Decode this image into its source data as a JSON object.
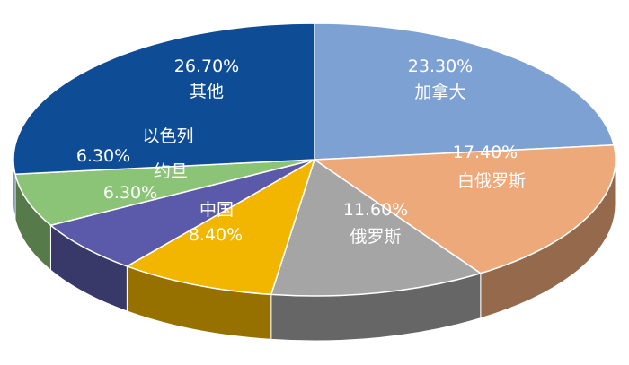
{
  "chart_data": {
    "type": "pie",
    "title": "",
    "slices": [
      {
        "label": "加拿大",
        "value": 23.3,
        "display": "23.30%",
        "color": "#7ea1d4"
      },
      {
        "label": "白俄罗斯",
        "value": 17.4,
        "display": "17.40%",
        "color": "#eea97a"
      },
      {
        "label": "俄罗斯",
        "value": 11.6,
        "display": "11.60%",
        "color": "#a5a5a5"
      },
      {
        "label": "中国",
        "value": 8.4,
        "display": "8.40%",
        "color": "#f2b600"
      },
      {
        "label": "约旦",
        "value": 6.3,
        "display": "6.30%",
        "color": "#5b5aaa"
      },
      {
        "label": "以色列",
        "value": 6.3,
        "display": "6.30%",
        "color": "#8cc477"
      },
      {
        "label": "其他",
        "value": 26.7,
        "display": "26.70%",
        "color": "#0f4c96"
      }
    ],
    "style": "3d-tilted",
    "legend": "none"
  }
}
